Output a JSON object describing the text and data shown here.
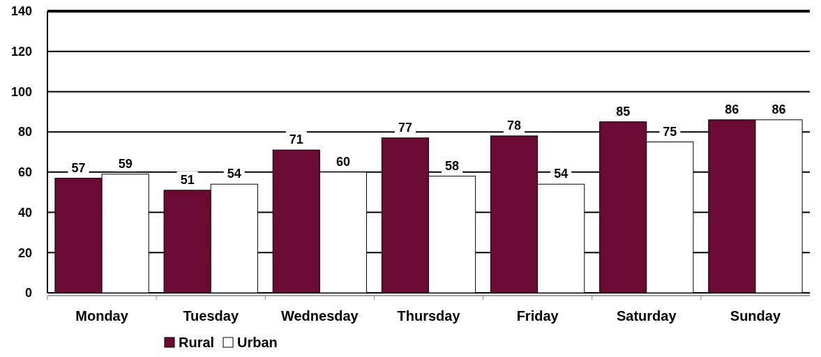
{
  "chart_data": {
    "type": "bar",
    "categories": [
      "Monday",
      "Tuesday",
      "Wednesday",
      "Thursday",
      "Friday",
      "Saturday",
      "Sunday"
    ],
    "series": [
      {
        "name": "Rural",
        "color": "#6b0a33",
        "values": [
          57,
          51,
          71,
          77,
          78,
          85,
          86
        ]
      },
      {
        "name": "Urban",
        "color": "#ffffff",
        "values": [
          59,
          54,
          60,
          58,
          54,
          75,
          86
        ]
      }
    ],
    "ylim": [
      0,
      140
    ],
    "yticks": [
      0,
      20,
      40,
      60,
      80,
      100,
      120,
      140
    ],
    "grid": "y",
    "legend": "bottom left",
    "data_labels": true
  }
}
